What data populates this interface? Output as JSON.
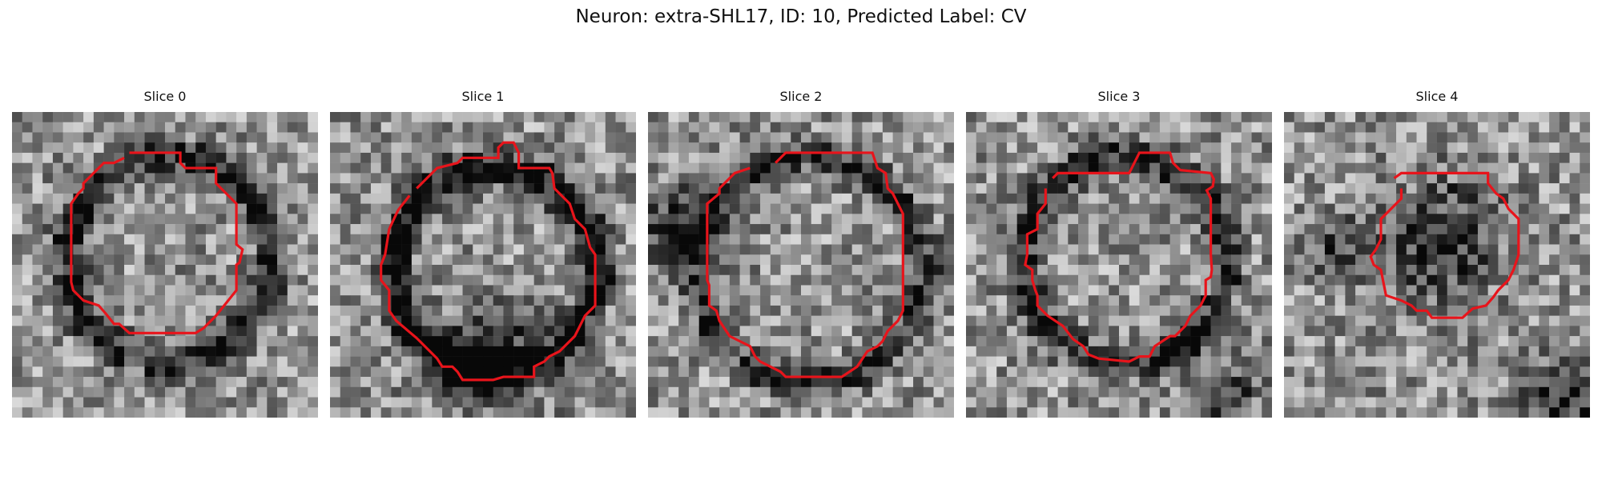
{
  "figure": {
    "title": "Neuron: extra-SHL17, ID: 10, Predicted Label: CV"
  },
  "panels": [
    {
      "title": "Slice 0"
    },
    {
      "title": "Slice 1"
    },
    {
      "title": "Slice 2"
    },
    {
      "title": "Slice 3"
    },
    {
      "title": "Slice 4"
    }
  ],
  "style": {
    "contour_color": "#e8141b",
    "colormap": "grayscale"
  }
}
